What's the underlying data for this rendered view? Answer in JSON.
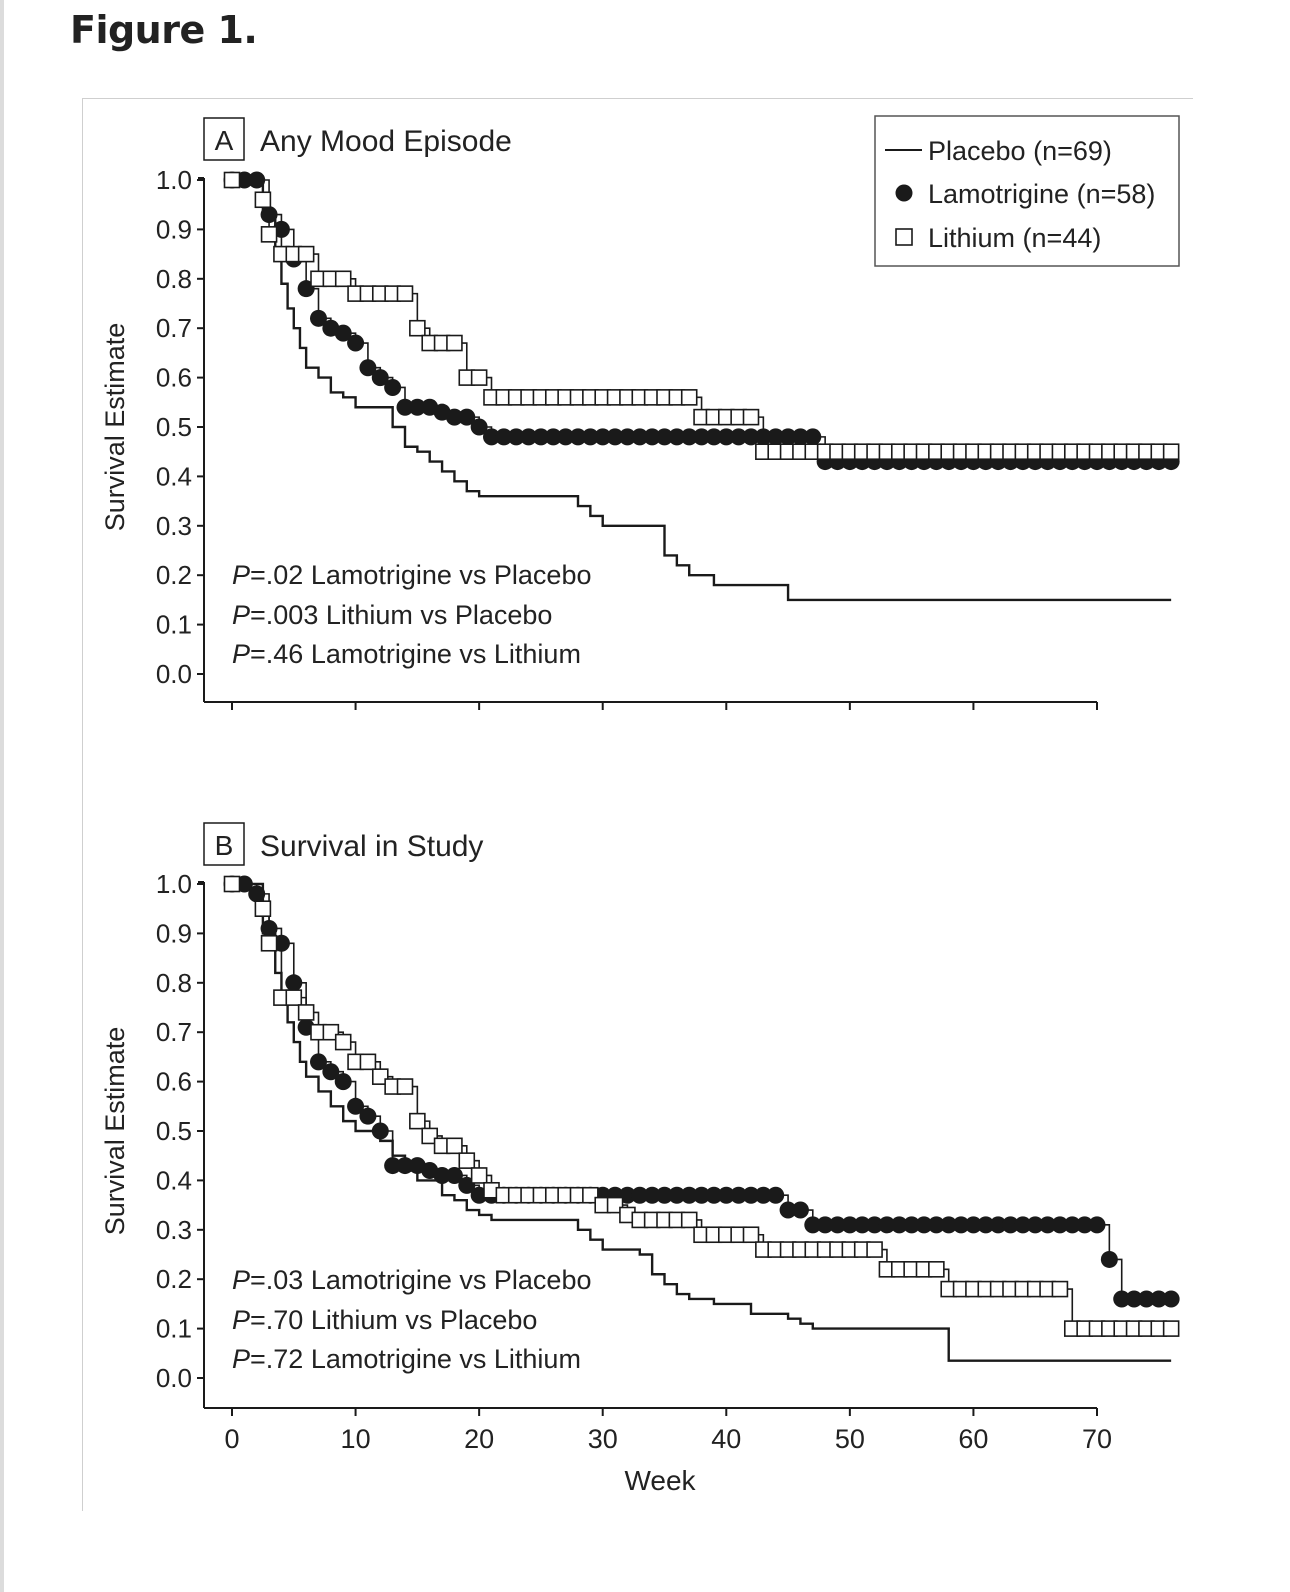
{
  "figure_title": "Figure 1.",
  "colors": {
    "ink": "#1a1a1a",
    "frame": "#cfcfcf",
    "background": "#ffffff"
  },
  "legend": {
    "items": [
      {
        "symbol": "line",
        "label": "Placebo (n=69)"
      },
      {
        "symbol": "filled-circle",
        "label": "Lamotrigine (n=58)"
      },
      {
        "symbol": "open-square",
        "label": "Lithium (n=44)"
      }
    ]
  },
  "chart_data": [
    {
      "type": "line",
      "panel_letter": "A",
      "title": "Any Mood Episode",
      "xlabel": "",
      "ylabel": "Survival Estimate",
      "xlim": [
        -2,
        70
      ],
      "ylim": [
        0,
        1.0
      ],
      "xticks": [
        0,
        10,
        20,
        30,
        40,
        50,
        60,
        70
      ],
      "yticks": [
        "0.0",
        "0.1",
        "0.2",
        "0.3",
        "0.4",
        "0.5",
        "0.6",
        "0.7",
        "0.8",
        "0.9",
        "1.0"
      ],
      "step": true,
      "annotations": [
        {
          "italic": "P",
          "text": "=.02 Lamotrigine vs Placebo"
        },
        {
          "italic": "P",
          "text": "=.003 Lithium vs Placebo"
        },
        {
          "italic": "P",
          "text": "=.46 Lamotrigine vs Lithium"
        }
      ],
      "series": [
        {
          "name": "Placebo (n=69)",
          "marker": "none",
          "x": [
            0,
            2.5,
            3.5,
            4,
            4.5,
            5,
            5.5,
            6,
            7,
            8,
            9,
            10,
            12,
            13,
            14,
            15,
            16,
            17,
            18,
            19,
            20,
            27,
            28,
            29,
            30,
            34,
            35,
            36,
            37,
            39,
            44,
            45,
            76
          ],
          "y": [
            1.0,
            0.93,
            0.85,
            0.79,
            0.74,
            0.7,
            0.66,
            0.62,
            0.6,
            0.57,
            0.56,
            0.54,
            0.54,
            0.5,
            0.46,
            0.45,
            0.43,
            0.41,
            0.39,
            0.37,
            0.36,
            0.36,
            0.34,
            0.32,
            0.3,
            0.3,
            0.24,
            0.22,
            0.2,
            0.18,
            0.18,
            0.15,
            0.15
          ]
        },
        {
          "name": "Lamotrigine (n=58)",
          "marker": "circle",
          "x": [
            0,
            1,
            2,
            3,
            4,
            5,
            6,
            7,
            8,
            9,
            10,
            11,
            12,
            13,
            14,
            15,
            16,
            17,
            18,
            19,
            20,
            21,
            22,
            23,
            24,
            25,
            26,
            27,
            28,
            29,
            30,
            31,
            32,
            33,
            34,
            35,
            36,
            37,
            38,
            39,
            40,
            41,
            42,
            43,
            44,
            45,
            46,
            47,
            48,
            49,
            50,
            51,
            52,
            53,
            54,
            55,
            56,
            57,
            58,
            59,
            60,
            61,
            62,
            63,
            64,
            65,
            66,
            67,
            68,
            69,
            70,
            71,
            72,
            73,
            74,
            75,
            76
          ],
          "y": [
            1.0,
            1.0,
            1.0,
            0.93,
            0.9,
            0.84,
            0.78,
            0.72,
            0.7,
            0.69,
            0.67,
            0.62,
            0.6,
            0.58,
            0.54,
            0.54,
            0.54,
            0.53,
            0.52,
            0.52,
            0.5,
            0.48,
            0.48,
            0.48,
            0.48,
            0.48,
            0.48,
            0.48,
            0.48,
            0.48,
            0.48,
            0.48,
            0.48,
            0.48,
            0.48,
            0.48,
            0.48,
            0.48,
            0.48,
            0.48,
            0.48,
            0.48,
            0.48,
            0.48,
            0.48,
            0.48,
            0.48,
            0.48,
            0.43,
            0.43,
            0.43,
            0.43,
            0.43,
            0.43,
            0.43,
            0.43,
            0.43,
            0.43,
            0.43,
            0.43,
            0.43,
            0.43,
            0.43,
            0.43,
            0.43,
            0.43,
            0.43,
            0.43,
            0.43,
            0.43,
            0.43,
            0.43,
            0.43,
            0.43,
            0.43,
            0.43,
            0.43
          ]
        },
        {
          "name": "Lithium (n=44)",
          "marker": "square",
          "x": [
            0,
            2.5,
            3,
            4,
            5,
            6,
            7,
            8,
            9,
            10,
            11,
            12,
            13,
            14,
            15,
            16,
            17,
            18,
            19,
            20,
            21,
            22,
            23,
            24,
            25,
            26,
            27,
            28,
            29,
            30,
            31,
            32,
            33,
            34,
            35,
            36,
            37,
            38,
            39,
            40,
            41,
            42,
            43,
            44,
            45,
            46,
            47,
            48,
            49,
            50,
            51,
            52,
            53,
            54,
            55,
            56,
            57,
            58,
            59,
            60,
            61,
            62,
            63,
            64,
            65,
            66,
            67,
            68,
            69,
            70,
            71,
            72,
            73,
            74,
            75,
            76
          ],
          "y": [
            1.0,
            0.96,
            0.89,
            0.85,
            0.85,
            0.85,
            0.8,
            0.8,
            0.8,
            0.77,
            0.77,
            0.77,
            0.77,
            0.77,
            0.7,
            0.67,
            0.67,
            0.67,
            0.6,
            0.6,
            0.56,
            0.56,
            0.56,
            0.56,
            0.56,
            0.56,
            0.56,
            0.56,
            0.56,
            0.56,
            0.56,
            0.56,
            0.56,
            0.56,
            0.56,
            0.56,
            0.56,
            0.52,
            0.52,
            0.52,
            0.52,
            0.52,
            0.45,
            0.45,
            0.45,
            0.45,
            0.45,
            0.45,
            0.45,
            0.45,
            0.45,
            0.45,
            0.45,
            0.45,
            0.45,
            0.45,
            0.45,
            0.45,
            0.45,
            0.45,
            0.45,
            0.45,
            0.45,
            0.45,
            0.45,
            0.45,
            0.45,
            0.45,
            0.45,
            0.45,
            0.45,
            0.45,
            0.45,
            0.45,
            0.45,
            0.45
          ]
        }
      ]
    },
    {
      "type": "line",
      "panel_letter": "B",
      "title": "Survival in Study",
      "xlabel": "Week",
      "ylabel": "Survival Estimate",
      "xlim": [
        -2,
        70
      ],
      "ylim": [
        0,
        1.0
      ],
      "xticks": [
        0,
        10,
        20,
        30,
        40,
        50,
        60,
        70
      ],
      "xtick_labels": [
        "0",
        "10",
        "20",
        "30",
        "40",
        "50",
        "60",
        "70"
      ],
      "yticks": [
        "0.0",
        "0.1",
        "0.2",
        "0.3",
        "0.4",
        "0.5",
        "0.6",
        "0.7",
        "0.8",
        "0.9",
        "1.0"
      ],
      "step": true,
      "annotations": [
        {
          "italic": "P",
          "text": "=.03 Lamotrigine vs Placebo"
        },
        {
          "italic": "P",
          "text": "=.70 Lithium vs Placebo"
        },
        {
          "italic": "P",
          "text": "=.72 Lamotrigine vs Lithium"
        }
      ],
      "series": [
        {
          "name": "Placebo (n=69)",
          "marker": "none",
          "x": [
            0,
            2.5,
            3.5,
            4,
            4.5,
            5,
            5.5,
            6,
            7,
            8,
            9,
            10,
            12,
            13,
            14,
            15,
            17,
            18,
            19,
            20,
            21,
            27,
            28,
            29,
            30,
            33,
            34,
            35,
            36,
            37,
            39,
            42,
            45,
            46,
            47,
            56,
            58,
            76
          ],
          "y": [
            1.0,
            0.9,
            0.82,
            0.76,
            0.72,
            0.68,
            0.64,
            0.61,
            0.58,
            0.55,
            0.52,
            0.5,
            0.48,
            0.45,
            0.42,
            0.4,
            0.37,
            0.36,
            0.34,
            0.33,
            0.32,
            0.32,
            0.3,
            0.28,
            0.26,
            0.25,
            0.21,
            0.19,
            0.17,
            0.16,
            0.15,
            0.13,
            0.12,
            0.11,
            0.1,
            0.1,
            0.035,
            0.035
          ]
        },
        {
          "name": "Lamotrigine (n=58)",
          "marker": "circle",
          "x": [
            0,
            1,
            2,
            3,
            4,
            5,
            6,
            7,
            8,
            9,
            10,
            11,
            12,
            13,
            14,
            15,
            16,
            17,
            18,
            19,
            20,
            21,
            22,
            23,
            24,
            25,
            26,
            27,
            28,
            29,
            30,
            31,
            32,
            33,
            34,
            35,
            36,
            37,
            38,
            39,
            40,
            41,
            42,
            43,
            44,
            45,
            46,
            47,
            48,
            49,
            50,
            51,
            52,
            53,
            54,
            55,
            56,
            57,
            58,
            59,
            60,
            61,
            62,
            63,
            64,
            65,
            66,
            67,
            68,
            69,
            70,
            71,
            72,
            73,
            74,
            75,
            76
          ],
          "y": [
            1.0,
            1.0,
            0.98,
            0.91,
            0.88,
            0.8,
            0.71,
            0.64,
            0.62,
            0.6,
            0.55,
            0.53,
            0.5,
            0.43,
            0.43,
            0.43,
            0.42,
            0.41,
            0.41,
            0.39,
            0.37,
            0.37,
            0.37,
            0.37,
            0.37,
            0.37,
            0.37,
            0.37,
            0.37,
            0.37,
            0.37,
            0.37,
            0.37,
            0.37,
            0.37,
            0.37,
            0.37,
            0.37,
            0.37,
            0.37,
            0.37,
            0.37,
            0.37,
            0.37,
            0.37,
            0.34,
            0.34,
            0.31,
            0.31,
            0.31,
            0.31,
            0.31,
            0.31,
            0.31,
            0.31,
            0.31,
            0.31,
            0.31,
            0.31,
            0.31,
            0.31,
            0.31,
            0.31,
            0.31,
            0.31,
            0.31,
            0.31,
            0.31,
            0.31,
            0.31,
            0.31,
            0.24,
            0.16,
            0.16,
            0.16,
            0.16,
            0.16
          ]
        },
        {
          "name": "Lithium (n=44)",
          "marker": "square",
          "x": [
            0,
            2.5,
            3,
            4,
            5,
            6,
            7,
            8,
            9,
            10,
            11,
            12,
            13,
            14,
            15,
            16,
            17,
            18,
            19,
            20,
            21,
            22,
            23,
            24,
            25,
            26,
            27,
            28,
            29,
            30,
            31,
            32,
            33,
            34,
            35,
            36,
            37,
            38,
            39,
            40,
            41,
            42,
            43,
            44,
            45,
            46,
            47,
            48,
            49,
            50,
            51,
            52,
            53,
            54,
            55,
            56,
            57,
            58,
            59,
            60,
            61,
            62,
            63,
            64,
            65,
            66,
            67,
            68,
            69,
            70,
            71,
            72,
            73,
            74,
            75,
            76
          ],
          "y": [
            1.0,
            0.95,
            0.88,
            0.77,
            0.77,
            0.74,
            0.7,
            0.7,
            0.68,
            0.64,
            0.64,
            0.61,
            0.59,
            0.59,
            0.52,
            0.49,
            0.47,
            0.47,
            0.44,
            0.41,
            0.38,
            0.37,
            0.37,
            0.37,
            0.37,
            0.37,
            0.37,
            0.37,
            0.37,
            0.35,
            0.35,
            0.33,
            0.32,
            0.32,
            0.32,
            0.32,
            0.32,
            0.29,
            0.29,
            0.29,
            0.29,
            0.29,
            0.26,
            0.26,
            0.26,
            0.26,
            0.26,
            0.26,
            0.26,
            0.26,
            0.26,
            0.26,
            0.22,
            0.22,
            0.22,
            0.22,
            0.22,
            0.18,
            0.18,
            0.18,
            0.18,
            0.18,
            0.18,
            0.18,
            0.18,
            0.18,
            0.18,
            0.1,
            0.1,
            0.1,
            0.1,
            0.1,
            0.1,
            0.1,
            0.1,
            0.1
          ]
        }
      ]
    }
  ]
}
